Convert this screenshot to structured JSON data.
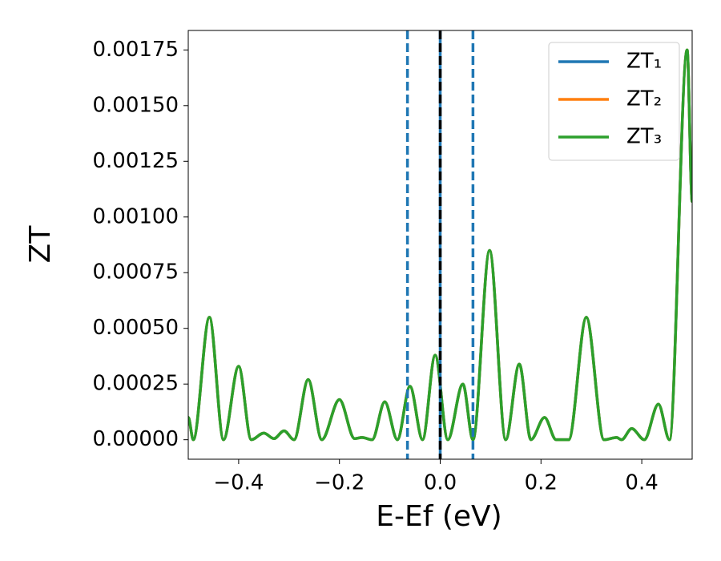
{
  "chart_data": {
    "type": "line",
    "xlabel": "E-Ef (eV)",
    "ylabel": "ZT",
    "xlim": [
      -0.5,
      0.5
    ],
    "ylim": [
      -8.75e-05,
      0.0018375
    ],
    "xticks": [
      {
        "value": -0.4,
        "label": "−0.4"
      },
      {
        "value": -0.2,
        "label": "−0.2"
      },
      {
        "value": 0,
        "label": "0.0"
      },
      0.2,
      0.4
    ],
    "yticks": [
      {
        "value": 0,
        "label": "0.00000"
      },
      {
        "value": 0.00025,
        "label": "0.00025"
      },
      {
        "value": 0.0005,
        "label": "0.00050"
      },
      {
        "value": 0.00075,
        "label": "0.00075"
      },
      {
        "value": 0.001,
        "label": "0.00100"
      },
      {
        "value": 0.00125,
        "label": "0.00125"
      },
      {
        "value": 0.0015,
        "label": "0.00150"
      },
      {
        "value": 0.00175,
        "label": "0.00175"
      }
    ],
    "legend": "upper right",
    "x": [
      -0.5,
      -0.49,
      -0.458,
      -0.43,
      -0.4,
      -0.375,
      -0.35,
      -0.33,
      -0.31,
      -0.29,
      -0.262,
      -0.235,
      -0.2,
      -0.17,
      -0.155,
      -0.135,
      -0.11,
      -0.085,
      -0.06,
      -0.035,
      -0.01,
      0.015,
      0.045,
      0.065,
      0.098,
      0.13,
      0.157,
      0.18,
      0.207,
      0.23,
      0.255,
      0.29,
      0.325,
      0.35,
      0.36,
      0.38,
      0.405,
      0.433,
      0.455,
      0.49,
      0.5
    ],
    "series": [
      {
        "name": "ZT₁",
        "color": "#1f77b4",
        "values": [
          0.0001,
          0,
          0.00055,
          0,
          0.00033,
          0,
          3e-05,
          5e-06,
          4e-05,
          0,
          0.00027,
          0,
          0.00018,
          5e-06,
          1e-05,
          0,
          0.00017,
          0,
          0.00024,
          0,
          0.00038,
          0,
          0.00025,
          0,
          0.00085,
          0,
          0.00034,
          0,
          0.0001,
          0,
          0,
          0.00055,
          0,
          1e-05,
          0,
          5e-05,
          0,
          0.00016,
          0,
          0.00175,
          0.00107
        ]
      },
      {
        "name": "ZT₂",
        "color": "#ff7f0e",
        "values": [
          0.0001,
          0,
          0.00055,
          0,
          0.00033,
          0,
          3e-05,
          5e-06,
          4e-05,
          0,
          0.00027,
          0,
          0.00018,
          5e-06,
          1e-05,
          0,
          0.00017,
          0,
          0.00024,
          0,
          0.00038,
          0,
          0.00025,
          0,
          0.00085,
          0,
          0.00034,
          0,
          0.0001,
          0,
          0,
          0.00055,
          0,
          1e-05,
          0,
          5e-05,
          0,
          0.00016,
          0,
          0.00175,
          0.00107
        ]
      },
      {
        "name": "ZT₃",
        "color": "#2ca02c",
        "values": [
          0.0001,
          0,
          0.00055,
          0,
          0.00033,
          0,
          3e-05,
          5e-06,
          4e-05,
          0,
          0.00027,
          0,
          0.00018,
          5e-06,
          1e-05,
          0,
          0.00017,
          0,
          0.00024,
          0,
          0.00038,
          0,
          0.00025,
          0,
          0.00085,
          0,
          0.00034,
          0,
          0.0001,
          0,
          0,
          0.00055,
          0,
          1e-05,
          0,
          5e-05,
          0,
          0.00016,
          0,
          0.00175,
          0.00107
        ]
      }
    ],
    "vlines": [
      {
        "x": -0.065,
        "color": "#1f77b4",
        "style": "dashed"
      },
      {
        "x": 0.065,
        "color": "#1f77b4",
        "style": "dashed"
      },
      {
        "x": 0,
        "color": "#1f77b4",
        "style": "solid"
      },
      {
        "x": 0,
        "color": "#000000",
        "style": "dashed"
      }
    ]
  }
}
